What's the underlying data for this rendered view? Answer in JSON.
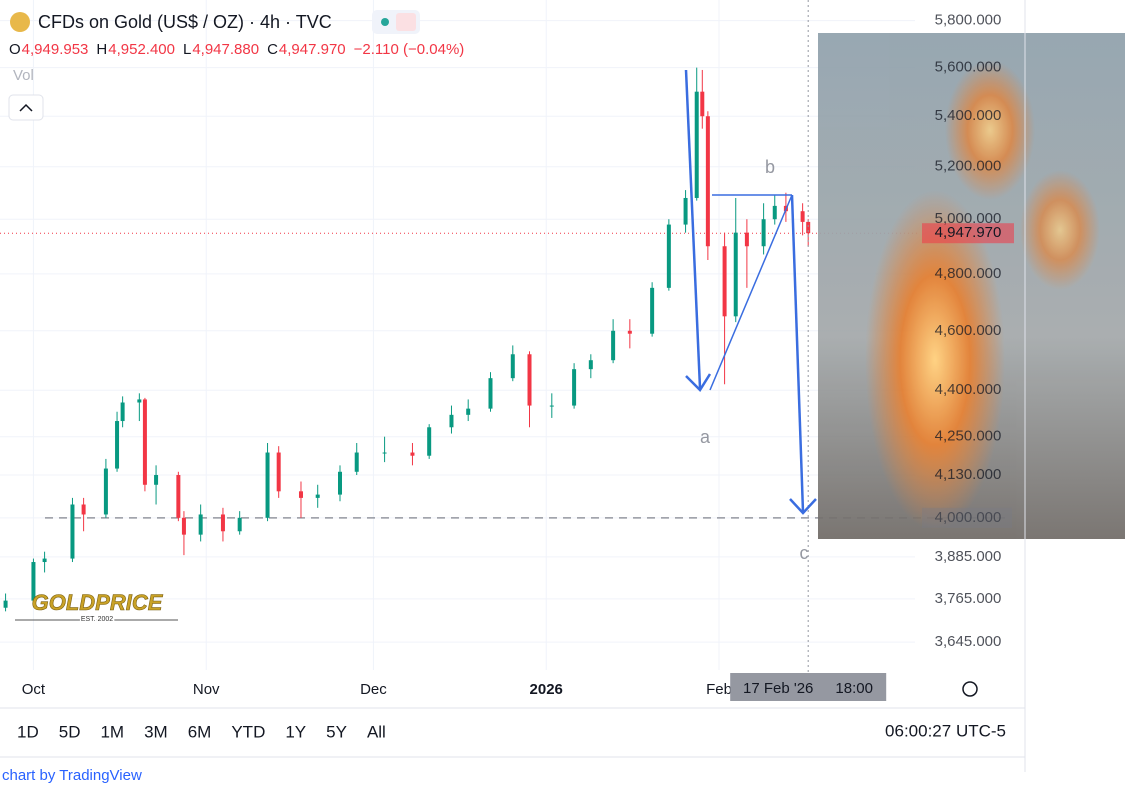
{
  "header": {
    "title": "CFDs on Gold (US$ / OZ) · 4h · TVC",
    "ohlc": [
      {
        "key": "O",
        "text": "4,949.953"
      },
      {
        "key": "H",
        "text": "4,952.400"
      },
      {
        "key": "L",
        "text": "4,947.880"
      },
      {
        "key": "C",
        "text": "4,947.970"
      }
    ],
    "change": "−2.110 (−0.04%)",
    "volume_label": "Vol"
  },
  "chart_data": {
    "type": "candlestick",
    "x": [
      "2025-09-26",
      "2025-10-01",
      "2025-10-03",
      "2025-10-08",
      "2025-10-10",
      "2025-10-14",
      "2025-10-16",
      "2025-10-17",
      "2025-10-20",
      "2025-10-21",
      "2025-10-23",
      "2025-10-27",
      "2025-10-28",
      "2025-10-31",
      "2025-11-04",
      "2025-11-07",
      "2025-11-12",
      "2025-11-14",
      "2025-11-18",
      "2025-11-21",
      "2025-11-25",
      "2025-11-28",
      "2025-12-03",
      "2025-12-08",
      "2025-12-11",
      "2025-12-15",
      "2025-12-18",
      "2025-12-22",
      "2025-12-26",
      "2025-12-29",
      "2026-01-02",
      "2026-01-06",
      "2026-01-09",
      "2026-01-13",
      "2026-01-16",
      "2026-01-20",
      "2026-01-23",
      "2026-01-26",
      "2026-01-28",
      "2026-01-29",
      "2026-01-30",
      "2026-02-02",
      "2026-02-04",
      "2026-02-06",
      "2026-02-09",
      "2026-02-11",
      "2026-02-13",
      "2026-02-16",
      "2026-02-17"
    ],
    "open": [
      3740,
      3760,
      3870,
      3880,
      4040,
      4010,
      4150,
      4300,
      4360,
      4370,
      4100,
      4130,
      4000,
      3950,
      4010,
      3960,
      4000,
      4200,
      4080,
      4060,
      4070,
      4140,
      4200,
      4200,
      4190,
      4280,
      4320,
      4340,
      4440,
      4520,
      4350,
      4350,
      4470,
      4500,
      4600,
      4590,
      4750,
      4980,
      5080,
      5500,
      5400,
      4900,
      4650,
      4950,
      4900,
      5000,
      5050,
      5030,
      4990
    ],
    "high": [
      3780,
      3880,
      3900,
      4060,
      4060,
      4180,
      4330,
      4380,
      4390,
      4375,
      4160,
      4140,
      4020,
      4040,
      4030,
      4020,
      4230,
      4220,
      4110,
      4100,
      4160,
      4230,
      4250,
      4230,
      4290,
      4350,
      4370,
      4460,
      4550,
      4530,
      4390,
      4490,
      4520,
      4640,
      4640,
      4770,
      5000,
      5110,
      5600,
      5590,
      5420,
      4950,
      5080,
      5000,
      5060,
      5090,
      5100,
      5060,
      5000
    ],
    "low": [
      3730,
      3750,
      3840,
      3870,
      3960,
      4000,
      4140,
      4280,
      4300,
      4080,
      4040,
      3990,
      3890,
      3930,
      3930,
      3950,
      3990,
      4060,
      4000,
      4030,
      4050,
      4130,
      4170,
      4160,
      4180,
      4260,
      4300,
      4330,
      4430,
      4280,
      4310,
      4340,
      4440,
      4490,
      4540,
      4580,
      4740,
      4950,
      5070,
      5350,
      4850,
      4420,
      4630,
      4750,
      4870,
      4980,
      4990,
      4940,
      4900
    ],
    "close": [
      3760,
      3870,
      3880,
      4040,
      4010,
      4150,
      4300,
      4360,
      4370,
      4100,
      4130,
      4000,
      3950,
      4010,
      3960,
      4000,
      4200,
      4080,
      4060,
      4070,
      4140,
      4200,
      4200,
      4190,
      4280,
      4320,
      4340,
      4440,
      4520,
      4350,
      4350,
      4470,
      4500,
      4600,
      4590,
      4750,
      4980,
      5080,
      5500,
      5400,
      4900,
      4650,
      4950,
      4900,
      5000,
      5050,
      5030,
      4990,
      4947.97
    ],
    "up_color": "#089981",
    "down_color": "#f23645",
    "xlim": [
      "2025-09-25",
      "2026-03-27"
    ],
    "xticks": [
      {
        "value": "2025-10-01",
        "label": "Oct"
      },
      {
        "value": "2025-11-01",
        "label": "Nov"
      },
      {
        "value": "2025-12-01",
        "label": "Dec"
      },
      {
        "value": "2026-01-01",
        "label": "2026"
      },
      {
        "value": "2026-02-01",
        "label": "Feb"
      }
    ],
    "ylim": [
      3570,
      5890
    ],
    "log_scale": true,
    "grid": true,
    "yticks": [
      {
        "value": 5800,
        "label": "5,800.000"
      },
      {
        "value": 5600,
        "label": "5,600.000"
      },
      {
        "value": 5400,
        "label": "5,400.000"
      },
      {
        "value": 5200,
        "label": "5,200.000"
      },
      {
        "value": 5000,
        "label": "5,000.000"
      },
      {
        "value": 4800,
        "label": "4,800.000"
      },
      {
        "value": 4600,
        "label": "4,600.000"
      },
      {
        "value": 4400,
        "label": "4,400.000"
      },
      {
        "value": 4250,
        "label": "4,250.000"
      },
      {
        "value": 4130,
        "label": "4,130.000"
      },
      {
        "value": 4000,
        "label": "4,000.000"
      },
      {
        "value": 3885,
        "label": "3,885.000"
      },
      {
        "value": 3765,
        "label": "3,765.000"
      },
      {
        "value": 3645,
        "label": "3,645.000"
      }
    ],
    "last_price": {
      "value": 4947.97,
      "label": "4,947.970"
    },
    "support_line": 4000,
    "crosshair": {
      "x": "2026-02-17",
      "date_label": "17 Feb '26",
      "time_label": "18:00"
    },
    "annotations": [
      "a",
      "b",
      "c"
    ]
  },
  "footer": {
    "ranges": [
      "1D",
      "5D",
      "1M",
      "3M",
      "6M",
      "YTD",
      "1Y",
      "5Y",
      "All"
    ],
    "clock": "06:00:27 UTC-5",
    "credit": "chart by TradingView",
    "watermark": "GOLDPRICE",
    "watermark_sub": "EST. 2002"
  }
}
